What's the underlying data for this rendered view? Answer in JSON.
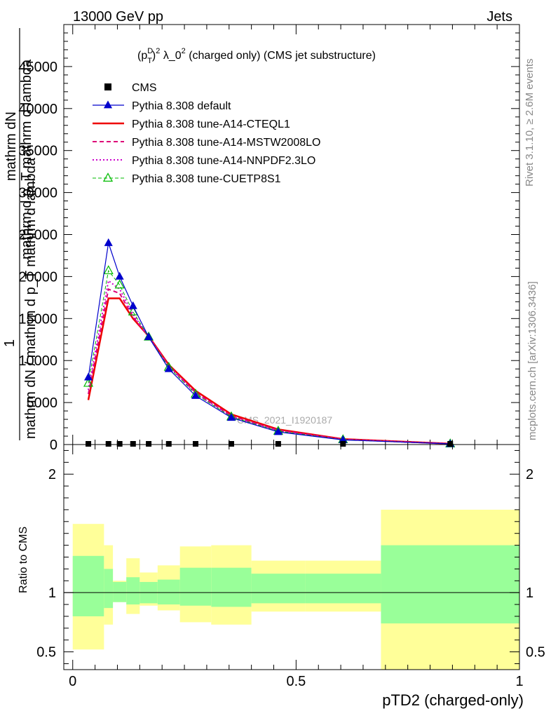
{
  "header": {
    "energy_label": "13000 GeV pp",
    "process_label": "Jets"
  },
  "side_labels": {
    "rivet_label": "Rivet 3.1.10, ≥ 2.6M events",
    "mcplots_label": "mcplots.cern.ch [arXiv:1306.3436]"
  },
  "chart_data": [
    {
      "type": "line",
      "title": "(p_T^D)^2 λ_0^2 (charged only) (CMS jet substructure)",
      "title_parts": {
        "base": "(p",
        "sup1": "D",
        "sub1": "T",
        "mid": ")",
        "sup2": "2",
        "rest": " λ_0",
        "sup3": "2",
        "tail": " (charged only) (CMS jet substructure)"
      },
      "ylabel": "1 / mathrm dN / mathrm d p_T mathrm d lambda",
      "ylabel_lines": [
        "mathrm dN",
        "mathrm d p_T mathrm d lambda"
      ],
      "ylabel_numer": "1",
      "ylabel_denom": "mathrm dN / mathrm d p_T mathrm d lambda",
      "overlay_text": "CMS_2021_I1920187",
      "xlim": [
        -0.02,
        1.0
      ],
      "ylim": [
        0,
        50000
      ],
      "yticks": [
        0,
        5000,
        10000,
        15000,
        20000,
        25000,
        30000,
        35000,
        40000,
        45000
      ],
      "ytick_labels": [
        "0",
        "5000",
        "10000",
        "15000",
        "20000",
        "25000",
        "30000",
        "35000",
        "40000",
        "45000"
      ],
      "legend_position": "top-left",
      "x": [
        0.035,
        0.08,
        0.105,
        0.135,
        0.17,
        0.215,
        0.275,
        0.355,
        0.46,
        0.605,
        0.845
      ],
      "series": [
        {
          "name": "CMS",
          "color": "#000000",
          "style": "marker-square",
          "values": [
            0,
            0,
            0,
            0,
            0,
            0,
            0,
            0,
            0,
            0,
            0
          ]
        },
        {
          "name": "Pythia 8.308 default",
          "color": "#0000cc",
          "style": "solid-triangle",
          "values": [
            8000,
            24000,
            20000,
            16500,
            12800,
            9000,
            5800,
            3200,
            1500,
            550,
            80
          ]
        },
        {
          "name": "Pythia 8.308 tune-A14-CTEQL1",
          "color": "#ee0000",
          "style": "solid-thick",
          "values": [
            5300,
            17400,
            17400,
            15000,
            12900,
            9500,
            6400,
            3600,
            1800,
            650,
            100
          ]
        },
        {
          "name": "Pythia 8.308 tune-A14-MSTW2008LO",
          "color": "#dd0077",
          "style": "dashed",
          "values": [
            6000,
            18500,
            18000,
            15200,
            12850,
            9400,
            6200,
            3400,
            1700,
            620,
            95
          ]
        },
        {
          "name": "Pythia 8.308 tune-A14-NNPDF2.3LO",
          "color": "#cc00cc",
          "style": "dotted",
          "values": [
            6500,
            19500,
            18500,
            15500,
            12800,
            9300,
            6100,
            3350,
            1650,
            600,
            90
          ]
        },
        {
          "name": "Pythia 8.308 tune-CUETP8S1",
          "color": "#00bb00",
          "style": "dashed-open-triangle",
          "values": [
            7300,
            20700,
            19000,
            15800,
            12800,
            9200,
            6000,
            3300,
            1600,
            580,
            85
          ]
        }
      ]
    },
    {
      "type": "area",
      "ylabel": "Ratio to CMS",
      "xlabel": "pTD2 (charged-only)",
      "xlim": [
        -0.02,
        1.0
      ],
      "ylim": [
        0.35,
        2.25
      ],
      "xticks": [
        0,
        0.5,
        1
      ],
      "xtick_labels": [
        "0",
        "0.5",
        "1"
      ],
      "yticks": [
        0.5,
        1,
        2
      ],
      "ytick_labels": [
        "0.5",
        "1",
        "2"
      ],
      "reference_line": 1,
      "bin_edges": [
        0.0,
        0.07,
        0.09,
        0.12,
        0.15,
        0.19,
        0.24,
        0.31,
        0.4,
        0.52,
        0.69,
        1.0
      ],
      "band_green": {
        "color": "#99ff99",
        "low": [
          0.8,
          0.87,
          0.92,
          0.9,
          0.91,
          0.9,
          0.89,
          0.88,
          0.91,
          0.91,
          0.74
        ],
        "high": [
          1.31,
          1.2,
          1.09,
          1.13,
          1.09,
          1.11,
          1.21,
          1.21,
          1.16,
          1.16,
          1.4
        ]
      },
      "band_yellow": {
        "color": "#ffff99",
        "low": [
          0.52,
          0.73,
          0.92,
          0.82,
          0.89,
          0.85,
          0.75,
          0.73,
          0.84,
          0.84,
          0.35
        ],
        "high": [
          1.58,
          1.4,
          1.1,
          1.29,
          1.17,
          1.23,
          1.39,
          1.4,
          1.27,
          1.27,
          1.7
        ]
      }
    }
  ]
}
